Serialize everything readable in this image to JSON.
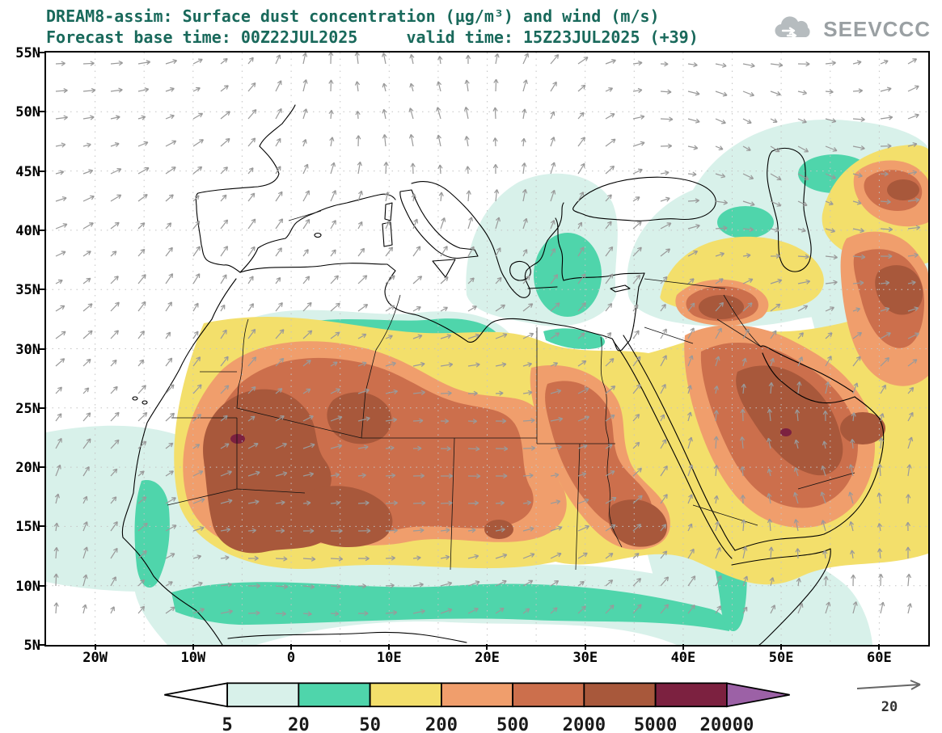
{
  "header": {
    "title": "DREAM8-assim: Surface dust concentration (µg/m³) and wind (m/s)",
    "subtitle": "Forecast base time: 00Z22JUL2025     valid time: 15Z23JUL2025 (+39)",
    "title_color": "#19695B",
    "logo": "SEEVCCC"
  },
  "axes": {
    "y_ticks": [
      "55N",
      "50N",
      "45N",
      "40N",
      "35N",
      "30N",
      "25N",
      "20N",
      "15N",
      "10N",
      "5N"
    ],
    "x_ticks": [
      "20W",
      "10W",
      "0",
      "10E",
      "20E",
      "30E",
      "40E",
      "50E",
      "60E"
    ]
  },
  "colorbar": {
    "labels": [
      "5",
      "20",
      "50",
      "200",
      "500",
      "2000",
      "5000",
      "20000"
    ],
    "below_min_color": "#FFFFFF",
    "segment_colors": [
      "#D8F1EA",
      "#4FD5AB",
      "#F3DF6B",
      "#F09E6C",
      "#CC6F4C",
      "#A8583B",
      "#7C2140"
    ],
    "above_max_color": "#9C61A6"
  },
  "wind_legend": {
    "value": "20"
  },
  "chart_data": {
    "type": "heatmap",
    "title": "DREAM8-assim: Surface dust concentration (µg/m³) and wind (m/s)",
    "model": "DREAM8-assim",
    "variable": "Surface dust concentration",
    "units": "µg/m³",
    "wind_units": "m/s",
    "forecast_base_time": "00Z22JUL2025",
    "valid_time": "15Z23JUL2025",
    "forecast_hour": 39,
    "lat_ticks": [
      "5N",
      "10N",
      "15N",
      "20N",
      "25N",
      "30N",
      "35N",
      "40N",
      "45N",
      "50N",
      "55N"
    ],
    "lon_ticks": [
      "20W",
      "10W",
      "0",
      "10E",
      "20E",
      "30E",
      "40E",
      "50E",
      "60E"
    ],
    "lat_range": [
      "5N",
      "55N"
    ],
    "lon_range": [
      "25W",
      "65E"
    ],
    "contour_levels": [
      5,
      20,
      50,
      200,
      500,
      2000,
      5000,
      20000
    ],
    "level_colors": [
      "#FFFFFF",
      "#D8F1EA",
      "#4FD5AB",
      "#F3DF6B",
      "#F09E6C",
      "#CC6F4C",
      "#A8583B",
      "#7C2140",
      "#9C61A6"
    ],
    "wind_reference_arrow": 20,
    "legend_position": "bottom",
    "notes": "Filled dust-concentration contours with gray wind vectors over North Africa, Europe and the Middle East; maxima (2000-5000+) over Mauritania/Mali, central Sahara, Arabian Peninsula and Iran/Central Asia; low values (5-50) over the Atlantic, Mediterranean, Sahel band and southeastern Europe."
  }
}
